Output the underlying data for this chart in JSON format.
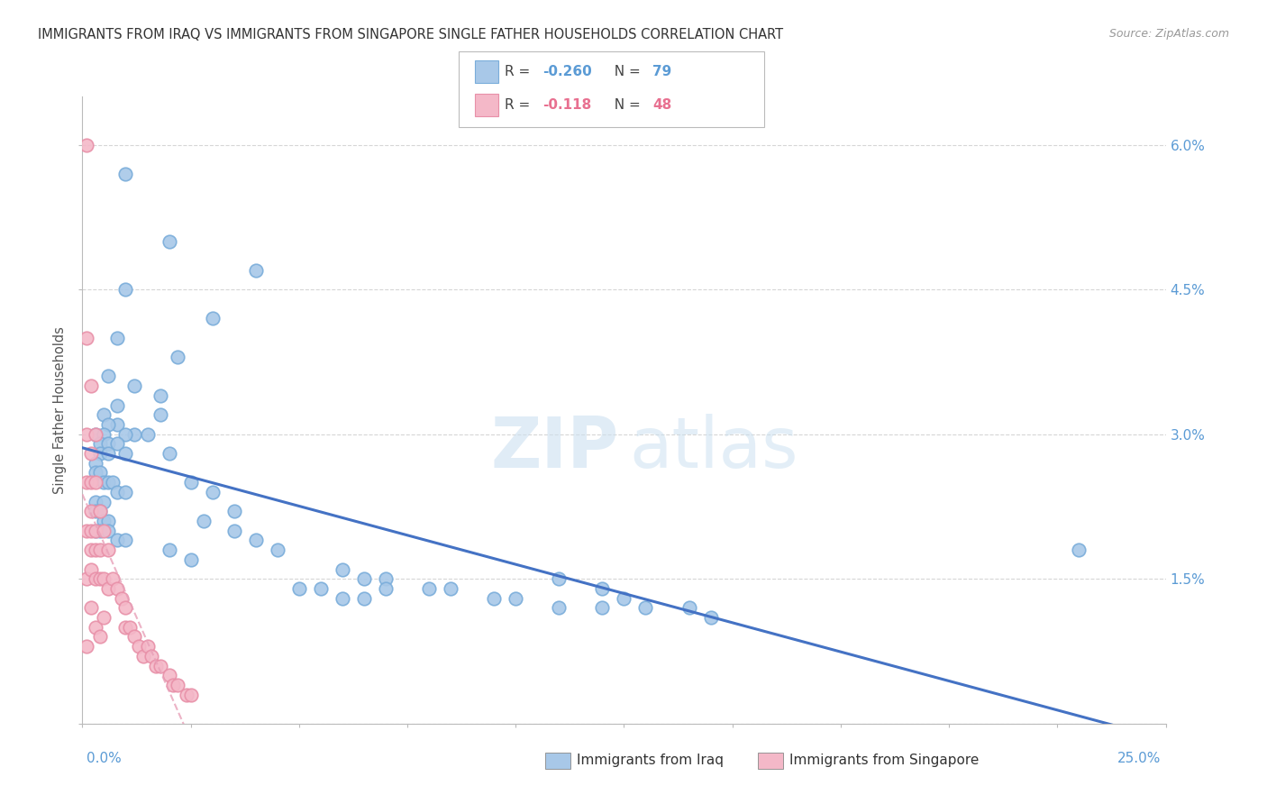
{
  "title": "IMMIGRANTS FROM IRAQ VS IMMIGRANTS FROM SINGAPORE SINGLE FATHER HOUSEHOLDS CORRELATION CHART",
  "source": "Source: ZipAtlas.com",
  "ylabel": "Single Father Households",
  "right_yticklabels": [
    "",
    "1.5%",
    "3.0%",
    "4.5%",
    "6.0%"
  ],
  "right_ytick_vals": [
    0.0,
    0.015,
    0.03,
    0.045,
    0.06
  ],
  "xrange": [
    0.0,
    0.25
  ],
  "yrange": [
    0.0,
    0.065
  ],
  "iraq_color": "#a8c8e8",
  "iraq_edge_color": "#7aadda",
  "singapore_color": "#f4b8c8",
  "singapore_edge_color": "#e890a8",
  "iraq_line_color": "#4472c4",
  "singapore_line_color": "#e8a0b8",
  "watermark_zip_color": "#d8eaf8",
  "watermark_atlas_color": "#c8dff0",
  "iraq_scatter_x": [
    0.01,
    0.02,
    0.04,
    0.01,
    0.03,
    0.008,
    0.022,
    0.006,
    0.012,
    0.018,
    0.008,
    0.005,
    0.008,
    0.012,
    0.015,
    0.018,
    0.006,
    0.01,
    0.003,
    0.005,
    0.004,
    0.006,
    0.008,
    0.004,
    0.006,
    0.01,
    0.003,
    0.003,
    0.004,
    0.005,
    0.006,
    0.007,
    0.008,
    0.01,
    0.003,
    0.005,
    0.003,
    0.004,
    0.005,
    0.006,
    0.003,
    0.004,
    0.006,
    0.008,
    0.01,
    0.02,
    0.025,
    0.03,
    0.035,
    0.028,
    0.02,
    0.025,
    0.035,
    0.04,
    0.045,
    0.06,
    0.065,
    0.07,
    0.08,
    0.05,
    0.055,
    0.06,
    0.065,
    0.07,
    0.085,
    0.095,
    0.1,
    0.11,
    0.12,
    0.11,
    0.12,
    0.125,
    0.13,
    0.14,
    0.145,
    0.23
  ],
  "iraq_scatter_y": [
    0.057,
    0.05,
    0.047,
    0.045,
    0.042,
    0.04,
    0.038,
    0.036,
    0.035,
    0.034,
    0.033,
    0.032,
    0.031,
    0.03,
    0.03,
    0.032,
    0.031,
    0.03,
    0.03,
    0.03,
    0.029,
    0.029,
    0.029,
    0.028,
    0.028,
    0.028,
    0.027,
    0.026,
    0.026,
    0.025,
    0.025,
    0.025,
    0.024,
    0.024,
    0.023,
    0.023,
    0.022,
    0.022,
    0.021,
    0.021,
    0.02,
    0.02,
    0.02,
    0.019,
    0.019,
    0.028,
    0.025,
    0.024,
    0.022,
    0.021,
    0.018,
    0.017,
    0.02,
    0.019,
    0.018,
    0.016,
    0.015,
    0.015,
    0.014,
    0.014,
    0.014,
    0.013,
    0.013,
    0.014,
    0.014,
    0.013,
    0.013,
    0.012,
    0.012,
    0.015,
    0.014,
    0.013,
    0.012,
    0.012,
    0.011,
    0.018
  ],
  "singapore_scatter_x": [
    0.001,
    0.001,
    0.001,
    0.001,
    0.001,
    0.001,
    0.002,
    0.002,
    0.002,
    0.002,
    0.002,
    0.002,
    0.002,
    0.003,
    0.003,
    0.003,
    0.003,
    0.003,
    0.004,
    0.004,
    0.004,
    0.005,
    0.005,
    0.006,
    0.006,
    0.007,
    0.008,
    0.009,
    0.01,
    0.01,
    0.011,
    0.012,
    0.013,
    0.014,
    0.015,
    0.016,
    0.017,
    0.018,
    0.02,
    0.021,
    0.022,
    0.024,
    0.025,
    0.003,
    0.001,
    0.002,
    0.004,
    0.005
  ],
  "singapore_scatter_y": [
    0.06,
    0.04,
    0.03,
    0.025,
    0.02,
    0.015,
    0.035,
    0.028,
    0.025,
    0.022,
    0.02,
    0.018,
    0.016,
    0.03,
    0.025,
    0.02,
    0.018,
    0.015,
    0.022,
    0.018,
    0.015,
    0.02,
    0.015,
    0.018,
    0.014,
    0.015,
    0.014,
    0.013,
    0.012,
    0.01,
    0.01,
    0.009,
    0.008,
    0.007,
    0.008,
    0.007,
    0.006,
    0.006,
    0.005,
    0.004,
    0.004,
    0.003,
    0.003,
    0.01,
    0.008,
    0.012,
    0.009,
    0.011
  ]
}
